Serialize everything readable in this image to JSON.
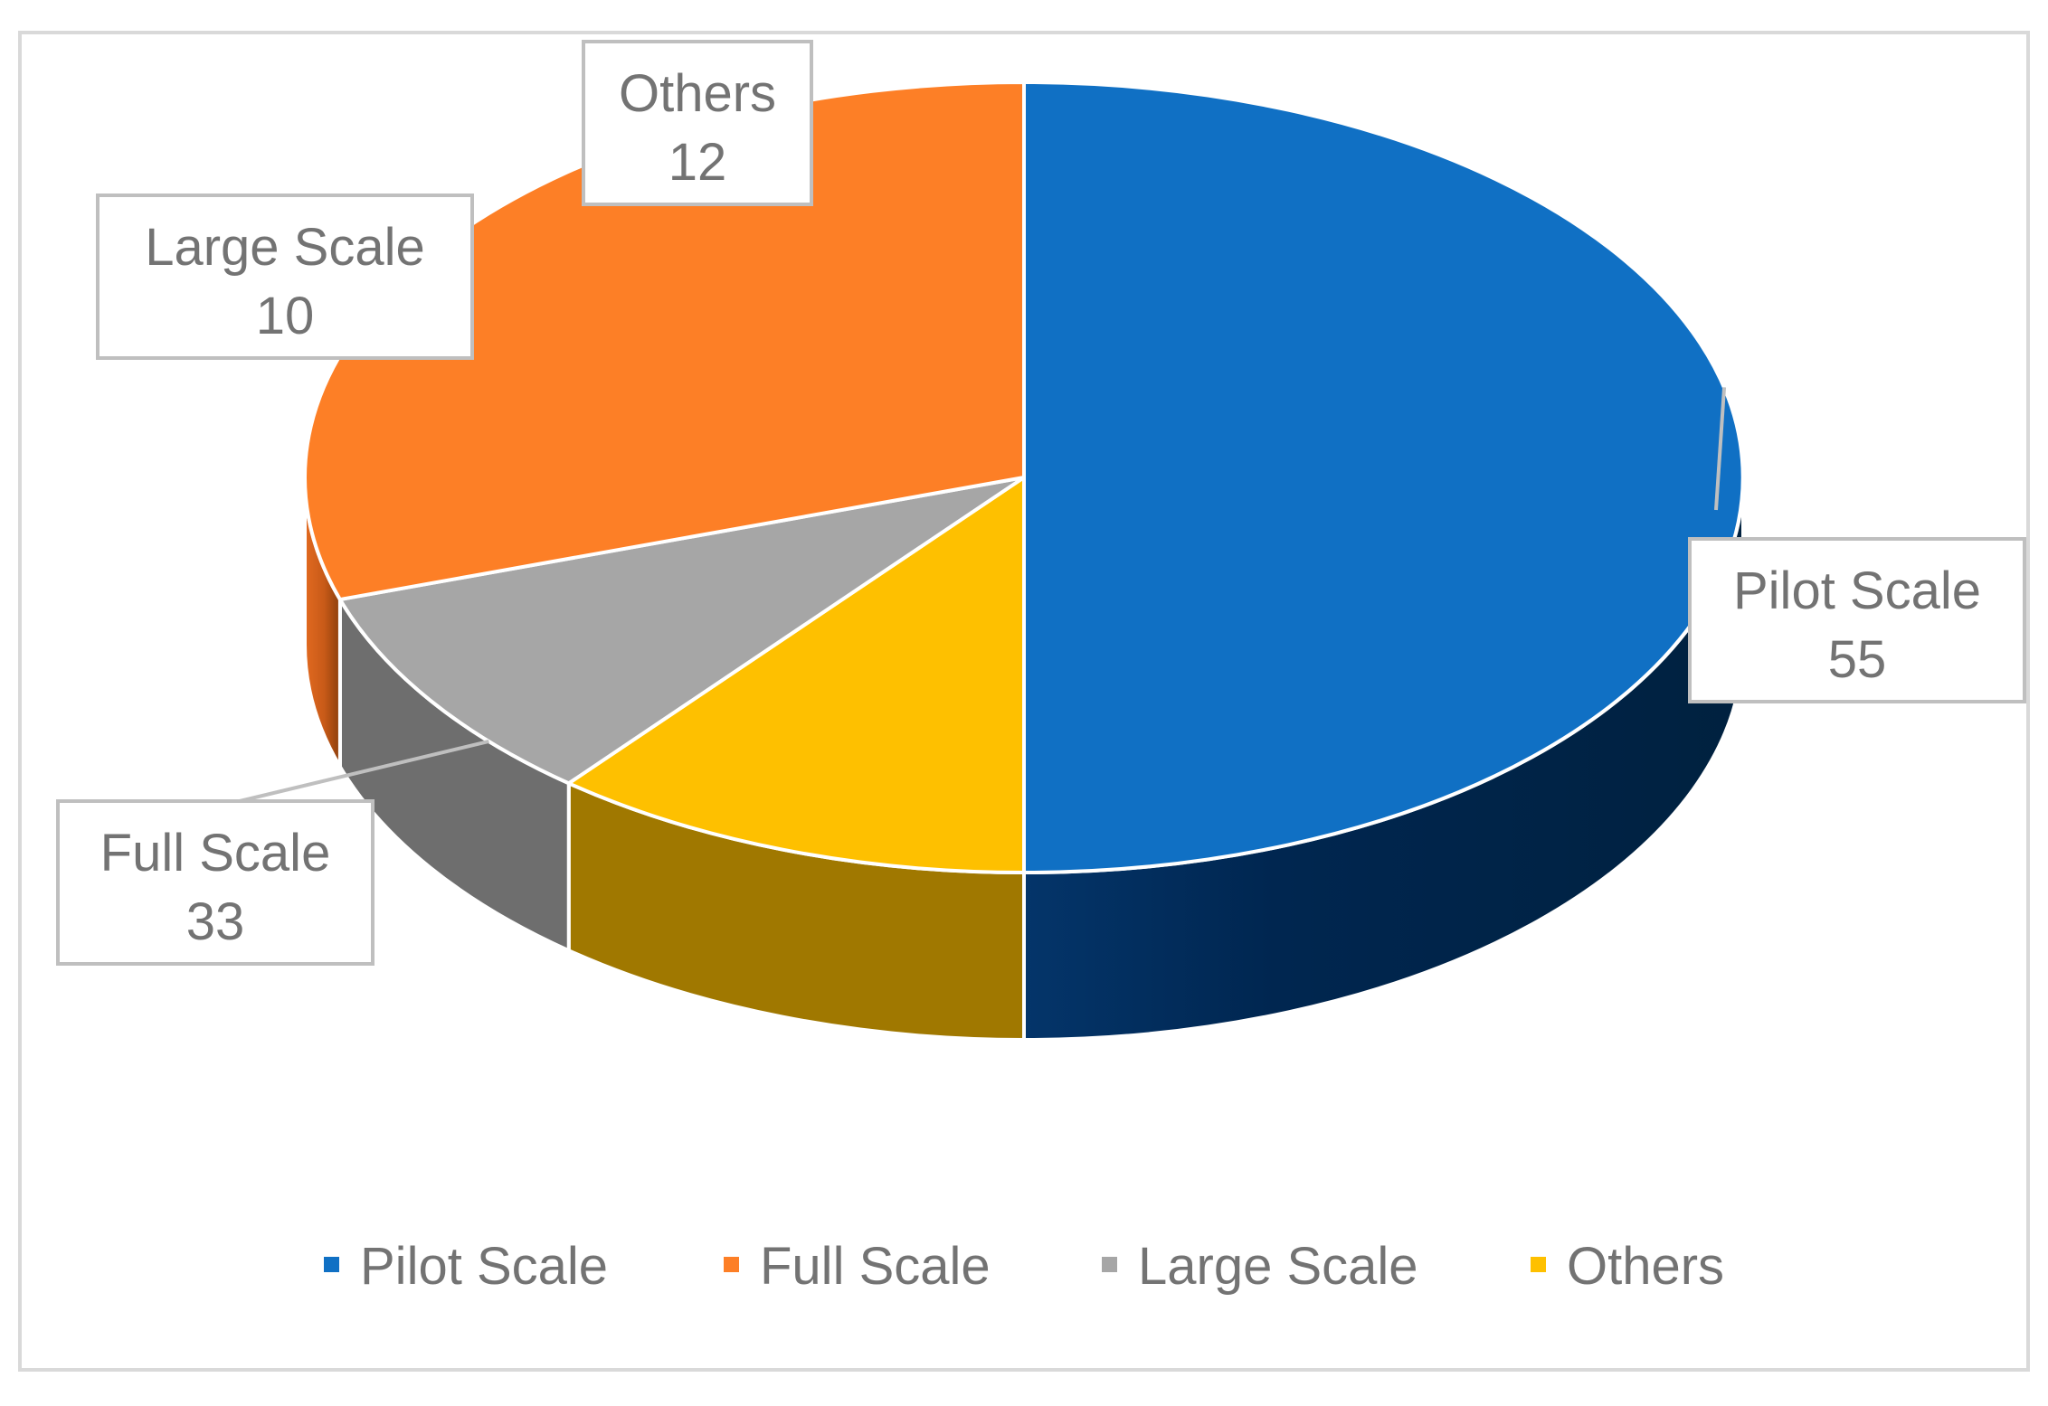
{
  "chart_data": {
    "type": "pie",
    "style": "3d",
    "categories": [
      "Pilot Scale",
      "Full Scale",
      "Large Scale",
      "Others"
    ],
    "values": [
      55,
      33,
      10,
      12
    ],
    "colors": [
      "#1070C4",
      "#FD7F26",
      "#A6A6A6",
      "#FEC000"
    ],
    "side_colors": [
      "#002850",
      "#DB6820",
      "#6E6E6E",
      "#A07800"
    ],
    "data_labels": [
      {
        "name": "Pilot Scale",
        "value": "55"
      },
      {
        "name": "Full Scale",
        "value": "33"
      },
      {
        "name": "Large Scale",
        "value": "10"
      },
      {
        "name": "Others",
        "value": "12"
      }
    ],
    "legend_position": "bottom",
    "border_color": "#D9D9D9",
    "label_text_color": "#737373",
    "label_border_color": "#BFBFBF"
  }
}
